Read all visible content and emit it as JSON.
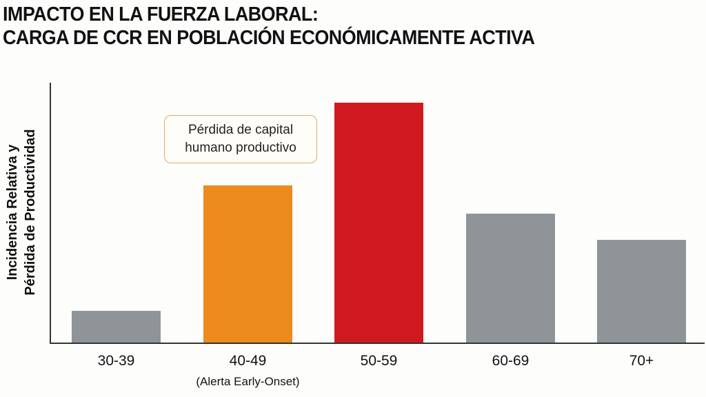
{
  "title": {
    "line1": "IMPACTO EN LA FUERZA LABORAL:",
    "line2": "CARGA DE CCR EN POBLACIÓN ECONÓMICAMENTE ACTIVA"
  },
  "yaxis": {
    "line1": "Incidencia Relativa y",
    "line2": "Pérdida de Productividad"
  },
  "callout": {
    "line1": "Pérdida de capital",
    "line2": "humano productivo",
    "border_color": "#e3a862"
  },
  "colors": {
    "gray": "#8f9498",
    "orange": "#ec8a1e",
    "red": "#d0191f",
    "axis": "#333333"
  },
  "chart_data": {
    "type": "bar",
    "title": "IMPACTO EN LA FUERZA LABORAL: CARGA DE CCR EN POBLACIÓN ECONÓMICAMENTE ACTIVA",
    "xlabel": "",
    "ylabel": "Incidencia Relativa y Pérdida de Productividad",
    "categories": [
      "30-39",
      "40-49",
      "50-59",
      "60-69",
      "70+"
    ],
    "category_sublabels": [
      "",
      "(Alerta Early-Onset)",
      "",
      "",
      ""
    ],
    "values": [
      13.5,
      65.5,
      100,
      54,
      43
    ],
    "value_note": "Relative heights (no numeric axis shown); normalized so 50-59 = 100",
    "bar_colors": [
      "#8f9498",
      "#ec8a1e",
      "#d0191f",
      "#8f9498",
      "#8f9498"
    ],
    "ylim": [
      0,
      104
    ],
    "grid": false,
    "legend": null,
    "annotations": [
      {
        "text": "Pérdida de capital humano productivo",
        "target": "40-49",
        "type": "callout"
      }
    ]
  }
}
